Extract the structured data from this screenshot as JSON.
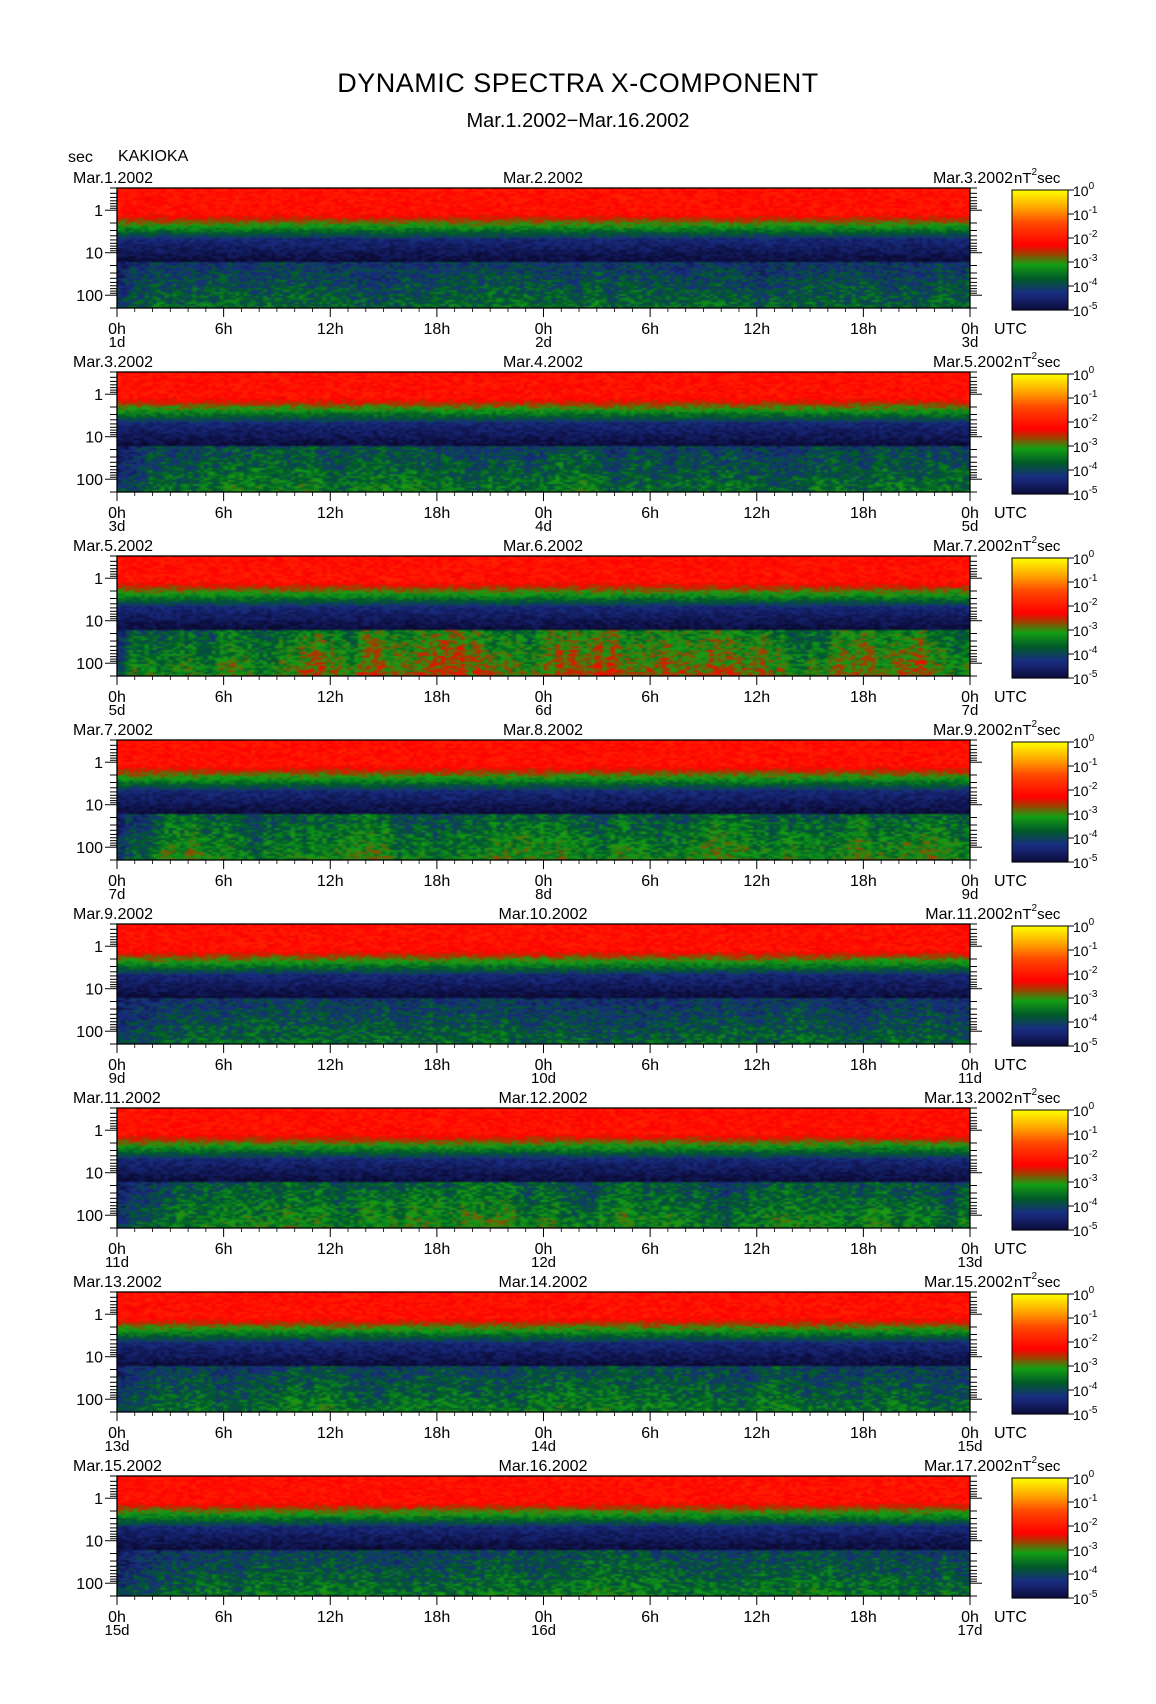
{
  "chart_data": {
    "type": "heatmap",
    "title": "DYNAMIC SPECTRA X-COMPONENT",
    "subtitle": "Mar.1.2002−Mar.16.2002",
    "station": "KAKIOKA",
    "y_unit": "sec",
    "y_scale": "log",
    "y_range_sec": [
      0.3,
      200
    ],
    "y_ticks": [
      "1",
      "10",
      "100"
    ],
    "x_ticks": [
      "0h",
      "6h",
      "12h",
      "18h",
      "0h",
      "6h",
      "12h",
      "18h",
      "0h"
    ],
    "x_unit": "UTC",
    "colorbar": {
      "unit_prefix": "nT",
      "unit_exp": "2",
      "unit_suffix": "sec",
      "scale": "log",
      "range": [
        1e-05,
        1
      ],
      "tick_mantissa": "10",
      "tick_exponents": [
        "0",
        "-1",
        "-2",
        "-3",
        "-4",
        "-5"
      ]
    },
    "panels": [
      {
        "date_start": "Mar.1.2002",
        "date_mid": "Mar.2.2002",
        "date_end": "Mar.3.2002",
        "day_start": "1d",
        "day_mid": "2d",
        "day_end": "3d"
      },
      {
        "date_start": "Mar.3.2002",
        "date_mid": "Mar.4.2002",
        "date_end": "Mar.5.2002",
        "day_start": "3d",
        "day_mid": "4d",
        "day_end": "5d"
      },
      {
        "date_start": "Mar.5.2002",
        "date_mid": "Mar.6.2002",
        "date_end": "Mar.7.2002",
        "day_start": "5d",
        "day_mid": "6d",
        "day_end": "7d"
      },
      {
        "date_start": "Mar.7.2002",
        "date_mid": "Mar.8.2002",
        "date_end": "Mar.9.2002",
        "day_start": "7d",
        "day_mid": "8d",
        "day_end": "9d"
      },
      {
        "date_start": "Mar.9.2002",
        "date_mid": "Mar.10.2002",
        "date_end": "Mar.11.2002",
        "day_start": "9d",
        "day_mid": "10d",
        "day_end": "11d"
      },
      {
        "date_start": "Mar.11.2002",
        "date_mid": "Mar.12.2002",
        "date_end": "Mar.13.2002",
        "day_start": "11d",
        "day_mid": "12d",
        "day_end": "13d"
      },
      {
        "date_start": "Mar.13.2002",
        "date_mid": "Mar.14.2002",
        "date_end": "Mar.15.2002",
        "day_start": "13d",
        "day_mid": "14d",
        "day_end": "15d"
      },
      {
        "date_start": "Mar.15.2002",
        "date_mid": "Mar.16.2002",
        "date_end": "Mar.17.2002",
        "day_start": "15d",
        "day_mid": "16d",
        "day_end": "17d"
      }
    ],
    "colors": {
      "high": "#ff0000",
      "mid": "#008000",
      "low": "#101040",
      "floor": "#000000",
      "max": "#ffff00"
    }
  }
}
